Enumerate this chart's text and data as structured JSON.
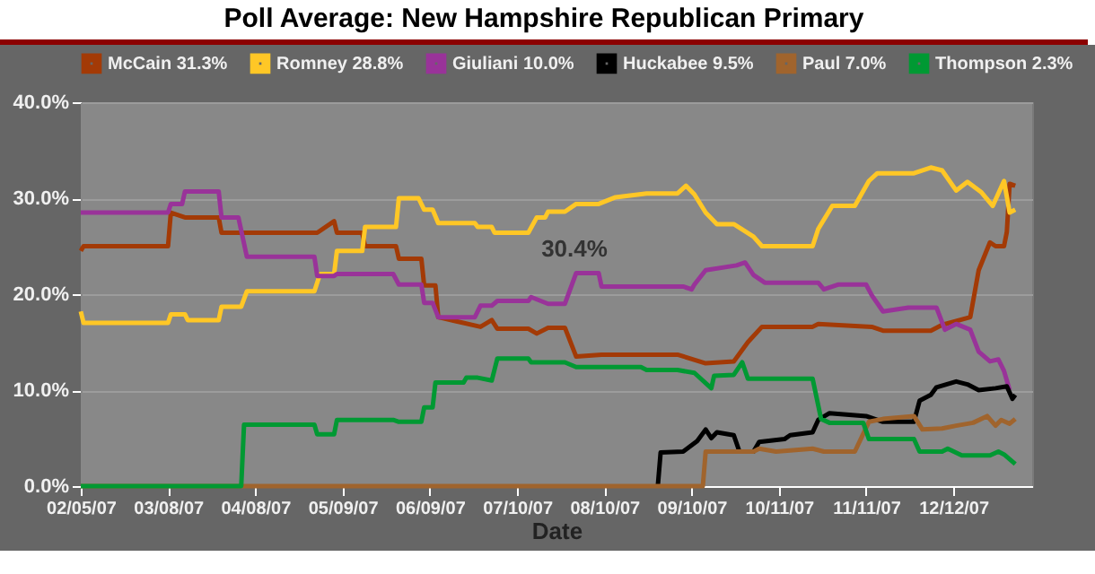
{
  "chart_data": {
    "type": "line",
    "title": "Poll Average: New Hampshire Republican Primary",
    "xlabel": "Date",
    "xlim": [
      "2007-02-05",
      "2008-01-09"
    ],
    "xticks": [
      {
        "value": "2007-02-05",
        "label": "02/05/07"
      },
      {
        "value": "2007-03-08",
        "label": "03/08/07"
      },
      {
        "value": "2007-04-08",
        "label": "04/08/07"
      },
      {
        "value": "2007-05-09",
        "label": "05/09/07"
      },
      {
        "value": "2007-06-09",
        "label": "06/09/07"
      },
      {
        "value": "2007-07-10",
        "label": "07/10/07"
      },
      {
        "value": "2007-08-10",
        "label": "08/10/07"
      },
      {
        "value": "2007-09-10",
        "label": "09/10/07"
      },
      {
        "value": "2007-10-11",
        "label": "10/11/07"
      },
      {
        "value": "2007-11-11",
        "label": "11/11/07"
      },
      {
        "value": "2007-12-12",
        "label": "12/12/07"
      }
    ],
    "ylim": [
      0,
      40
    ],
    "yticks": [
      {
        "value": 0,
        "label": "0.0%"
      },
      {
        "value": 10,
        "label": "10.0%"
      },
      {
        "value": 20,
        "label": "20.0%"
      },
      {
        "value": 30,
        "label": "30.0%"
      },
      {
        "value": 40,
        "label": "40.0%"
      }
    ],
    "grid": "y",
    "legend": "top",
    "annotations": [
      "30.4%"
    ],
    "series": [
      {
        "name": "McCain 31.3%",
        "color": "#a33a06",
        "x": [
          "2007-02-05",
          "2007-02-06",
          "2007-03-08",
          "2007-03-09",
          "2007-03-14",
          "2007-03-26",
          "2007-03-27",
          "2007-04-30",
          "2007-05-06",
          "2007-05-07",
          "2007-05-16",
          "2007-05-17",
          "2007-05-28",
          "2007-05-29",
          "2007-06-06",
          "2007-06-07",
          "2007-06-11",
          "2007-06-12",
          "2007-06-27",
          "2007-07-01",
          "2007-07-03",
          "2007-07-14",
          "2007-07-17",
          "2007-07-21",
          "2007-07-27",
          "2007-07-31",
          "2007-08-09",
          "2007-09-05",
          "2007-09-15",
          "2007-09-25",
          "2007-09-30",
          "2007-10-05",
          "2007-10-23",
          "2007-10-25",
          "2007-11-13",
          "2007-11-17",
          "2007-12-04",
          "2007-12-08",
          "2007-12-18",
          "2007-12-21",
          "2007-12-25",
          "2007-12-27",
          "2007-12-30",
          "2007-12-31",
          "2008-01-01",
          "2008-01-03"
        ],
        "values": [
          24.5,
          25.0,
          25.0,
          28.5,
          28.0,
          28.0,
          26.4,
          26.4,
          27.6,
          26.4,
          26.4,
          25.0,
          25.0,
          23.7,
          23.7,
          20.9,
          20.9,
          17.6,
          16.6,
          17.3,
          16.4,
          16.4,
          15.9,
          16.5,
          16.5,
          13.5,
          13.7,
          13.7,
          12.8,
          13.0,
          15.0,
          16.6,
          16.6,
          16.9,
          16.6,
          16.2,
          16.2,
          16.8,
          17.6,
          22.5,
          25.4,
          25.0,
          25.0,
          26.5,
          31.5,
          31.3
        ]
      },
      {
        "name": "Romney 28.8%",
        "color": "#ffc726",
        "x": [
          "2007-02-05",
          "2007-02-06",
          "2007-03-08",
          "2007-03-09",
          "2007-03-14",
          "2007-03-15",
          "2007-03-26",
          "2007-03-27",
          "2007-04-03",
          "2007-04-05",
          "2007-04-29",
          "2007-05-01",
          "2007-05-06",
          "2007-05-07",
          "2007-05-16",
          "2007-05-17",
          "2007-05-28",
          "2007-05-29",
          "2007-06-05",
          "2007-06-07",
          "2007-06-10",
          "2007-06-12",
          "2007-06-25",
          "2007-06-26",
          "2007-07-01",
          "2007-07-02",
          "2007-07-14",
          "2007-07-17",
          "2007-07-20",
          "2007-07-21",
          "2007-07-27",
          "2007-07-31",
          "2007-08-08",
          "2007-08-14",
          "2007-08-25",
          "2007-09-05",
          "2007-09-08",
          "2007-09-11",
          "2007-09-15",
          "2007-09-19",
          "2007-09-25",
          "2007-10-02",
          "2007-10-05",
          "2007-10-23",
          "2007-10-25",
          "2007-10-30",
          "2007-11-07",
          "2007-11-12",
          "2007-11-15",
          "2007-11-28",
          "2007-12-04",
          "2007-12-08",
          "2007-12-13",
          "2007-12-17",
          "2007-12-22",
          "2007-12-26",
          "2007-12-30",
          "2008-01-01",
          "2008-01-03"
        ],
        "values": [
          18.2,
          17.0,
          17.0,
          17.9,
          17.9,
          17.3,
          17.3,
          18.7,
          18.7,
          20.3,
          20.3,
          22.1,
          22.1,
          24.5,
          24.5,
          27.0,
          27.0,
          30.0,
          30.0,
          28.8,
          28.8,
          27.4,
          27.4,
          27.0,
          27.0,
          26.4,
          26.4,
          28.0,
          28.0,
          28.6,
          28.6,
          29.4,
          29.4,
          30.1,
          30.5,
          30.5,
          31.3,
          30.4,
          28.5,
          27.3,
          27.3,
          26.0,
          25.0,
          25.0,
          26.8,
          29.2,
          29.2,
          31.8,
          32.6,
          32.6,
          33.2,
          32.9,
          30.8,
          31.7,
          30.6,
          29.2,
          31.8,
          28.5,
          28.8
        ]
      },
      {
        "name": "Giuliani 10.0%",
        "color": "#993399",
        "x": [
          "2007-02-05",
          "2007-03-08",
          "2007-03-09",
          "2007-03-13",
          "2007-03-14",
          "2007-03-26",
          "2007-03-27",
          "2007-04-02",
          "2007-04-05",
          "2007-04-29",
          "2007-04-30",
          "2007-05-06",
          "2007-05-07",
          "2007-05-27",
          "2007-05-29",
          "2007-06-06",
          "2007-06-07",
          "2007-06-10",
          "2007-06-12",
          "2007-06-25",
          "2007-06-27",
          "2007-07-01",
          "2007-07-03",
          "2007-07-14",
          "2007-07-15",
          "2007-07-21",
          "2007-07-27",
          "2007-07-31",
          "2007-08-08",
          "2007-08-09",
          "2007-09-07",
          "2007-09-10",
          "2007-09-11",
          "2007-09-15",
          "2007-09-26",
          "2007-09-29",
          "2007-10-02",
          "2007-10-06",
          "2007-10-25",
          "2007-10-27",
          "2007-11-01",
          "2007-11-11",
          "2007-11-13",
          "2007-11-17",
          "2007-11-26",
          "2007-12-06",
          "2007-12-09",
          "2007-12-13",
          "2007-12-18",
          "2007-12-21",
          "2007-12-25",
          "2007-12-28",
          "2007-12-30",
          "2008-01-01"
        ],
        "values": [
          28.5,
          28.5,
          29.4,
          29.4,
          30.7,
          30.7,
          28.0,
          28.0,
          23.9,
          23.9,
          21.9,
          21.9,
          22.1,
          22.1,
          21.0,
          21.0,
          19.1,
          19.1,
          17.6,
          17.6,
          18.8,
          18.8,
          19.3,
          19.3,
          19.7,
          19.0,
          19.0,
          22.2,
          22.2,
          20.8,
          20.8,
          20.5,
          21.0,
          22.5,
          23.0,
          23.3,
          22.0,
          21.2,
          21.2,
          20.5,
          21.0,
          21.0,
          19.9,
          18.2,
          18.6,
          18.6,
          16.3,
          16.9,
          16.3,
          14.0,
          13.0,
          13.2,
          12.0,
          10.0
        ]
      },
      {
        "name": "Huckabee 9.5%",
        "color": "#000000",
        "x": [
          "2007-08-29",
          "2007-08-30",
          "2007-09-07",
          "2007-09-12",
          "2007-09-15",
          "2007-09-17",
          "2007-09-19",
          "2007-09-25",
          "2007-09-27",
          "2007-10-02",
          "2007-10-04",
          "2007-10-13",
          "2007-10-15",
          "2007-10-23",
          "2007-10-25",
          "2007-10-29",
          "2007-11-11",
          "2007-11-17",
          "2007-11-28",
          "2007-11-30",
          "2007-12-04",
          "2007-12-06",
          "2007-12-13",
          "2007-12-17",
          "2007-12-21",
          "2007-12-27",
          "2007-12-31",
          "2008-01-02",
          "2008-01-03"
        ],
        "values": [
          0,
          3.5,
          3.6,
          4.7,
          5.9,
          5.0,
          5.6,
          5.3,
          3.6,
          3.6,
          4.6,
          4.9,
          5.3,
          5.6,
          6.9,
          7.6,
          7.3,
          6.7,
          6.7,
          8.9,
          9.5,
          10.3,
          10.9,
          10.6,
          10.0,
          10.2,
          10.4,
          9.1,
          9.5
        ]
      },
      {
        "name": "Paul 7.0%",
        "color": "#a0642d",
        "x": [
          "2007-02-05",
          "2007-09-14",
          "2007-09-15",
          "2007-09-26",
          "2007-10-02",
          "2007-10-04",
          "2007-10-10",
          "2007-10-23",
          "2007-10-27",
          "2007-11-07",
          "2007-11-12",
          "2007-11-17",
          "2007-11-28",
          "2007-12-01",
          "2007-12-08",
          "2007-12-13",
          "2007-12-19",
          "2007-12-24",
          "2007-12-27",
          "2007-12-29",
          "2008-01-01",
          "2008-01-03"
        ],
        "values": [
          0,
          0,
          3.6,
          3.6,
          3.6,
          3.9,
          3.6,
          3.9,
          3.6,
          3.6,
          6.7,
          7.0,
          7.3,
          5.9,
          6.0,
          6.3,
          6.6,
          7.3,
          6.3,
          6.9,
          6.5,
          7.0
        ]
      },
      {
        "name": "Thompson 2.3%",
        "color": "#009933",
        "x": [
          "2007-02-05",
          "2007-04-03",
          "2007-04-04",
          "2007-04-29",
          "2007-04-30",
          "2007-05-06",
          "2007-05-07",
          "2007-05-27",
          "2007-05-29",
          "2007-06-06",
          "2007-06-07",
          "2007-06-10",
          "2007-06-11",
          "2007-06-21",
          "2007-06-22",
          "2007-06-26",
          "2007-07-01",
          "2007-07-03",
          "2007-07-14",
          "2007-07-15",
          "2007-07-27",
          "2007-07-31",
          "2007-08-23",
          "2007-08-25",
          "2007-09-05",
          "2007-09-11",
          "2007-09-17",
          "2007-09-18",
          "2007-09-25",
          "2007-09-28",
          "2007-09-30",
          "2007-10-23",
          "2007-10-26",
          "2007-10-29",
          "2007-11-10",
          "2007-11-12",
          "2007-11-28",
          "2007-11-30",
          "2007-12-08",
          "2007-12-10",
          "2007-12-15",
          "2007-12-25",
          "2007-12-28",
          "2007-12-30",
          "2008-01-03"
        ],
        "values": [
          0,
          0,
          6.4,
          6.4,
          5.4,
          5.4,
          6.9,
          6.9,
          6.7,
          6.7,
          8.2,
          8.2,
          10.8,
          10.8,
          11.3,
          11.3,
          11.0,
          13.3,
          13.3,
          12.9,
          12.9,
          12.4,
          12.4,
          12.1,
          12.1,
          11.8,
          10.2,
          11.5,
          11.6,
          12.9,
          11.2,
          11.2,
          7.0,
          6.6,
          6.6,
          4.9,
          4.9,
          3.6,
          3.6,
          3.9,
          3.2,
          3.2,
          3.6,
          3.3,
          2.3
        ]
      }
    ]
  }
}
